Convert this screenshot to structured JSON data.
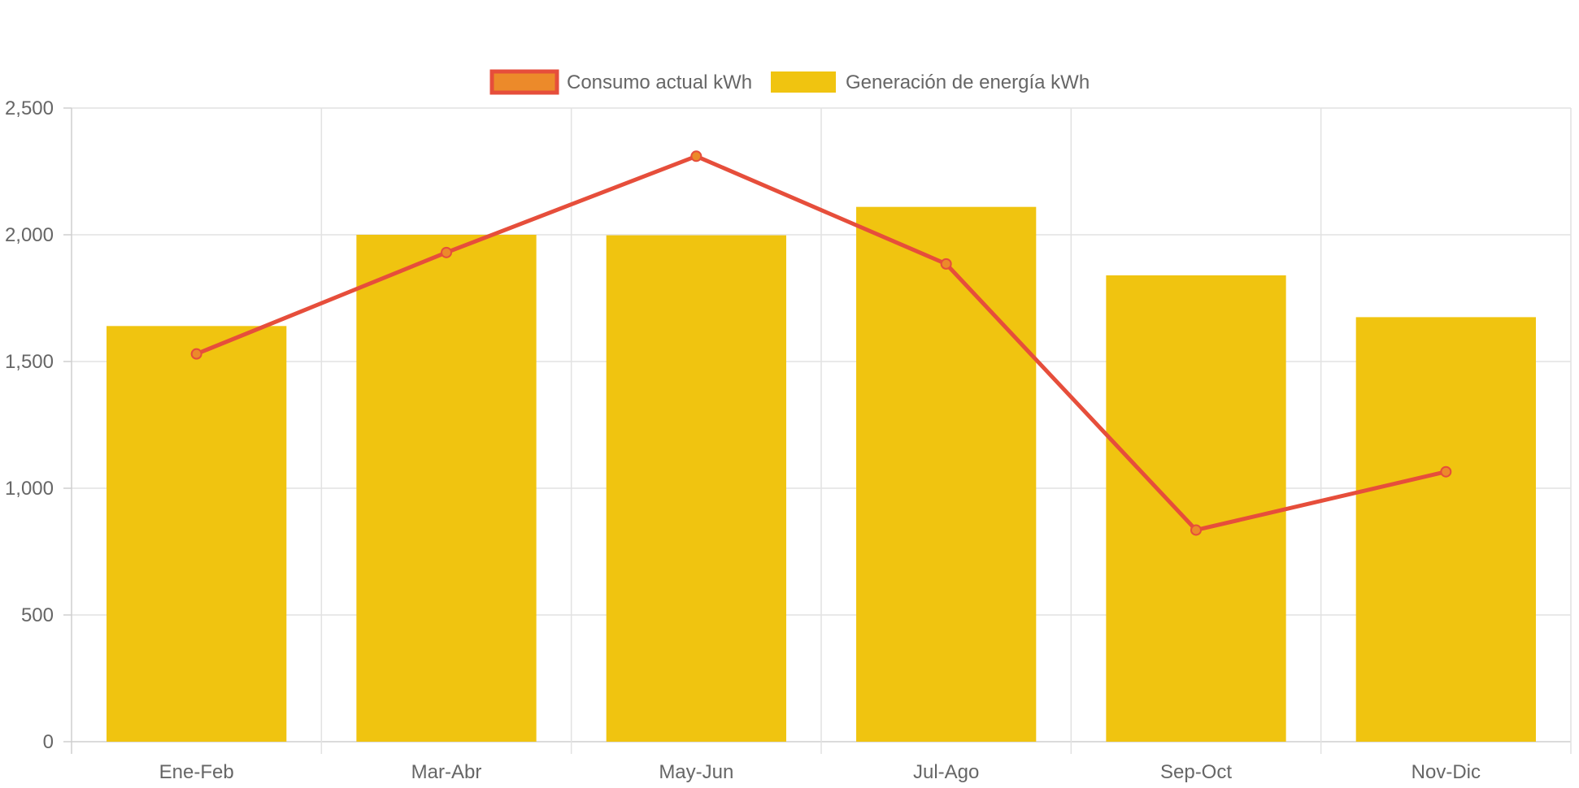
{
  "chart_data": {
    "type": "bar",
    "categories": [
      "Ene-Feb",
      "Mar-Abr",
      "May-Jun",
      "Jul-Ago",
      "Sep-Oct",
      "Nov-Dic"
    ],
    "series": [
      {
        "name": "Generación de energía kWh",
        "type": "bar",
        "color": "#f0c410",
        "values": [
          1640,
          2000,
          1998,
          2110,
          1840,
          1675
        ]
      },
      {
        "name": "Consumo actual kWh",
        "type": "line",
        "color": "#e64e3b",
        "point_fill": "#ec8a2a",
        "values": [
          1530,
          1930,
          2310,
          1885,
          835,
          1065
        ]
      }
    ],
    "ylim": [
      0,
      2500
    ],
    "yticks": [
      "0",
      "500",
      "1,000",
      "1,500",
      "2,000",
      "2,500"
    ],
    "ytick_values": [
      0,
      500,
      1000,
      1500,
      2000,
      2500
    ],
    "grid": true,
    "legend_position": "top-center",
    "title": "",
    "xlabel": "",
    "ylabel": ""
  }
}
